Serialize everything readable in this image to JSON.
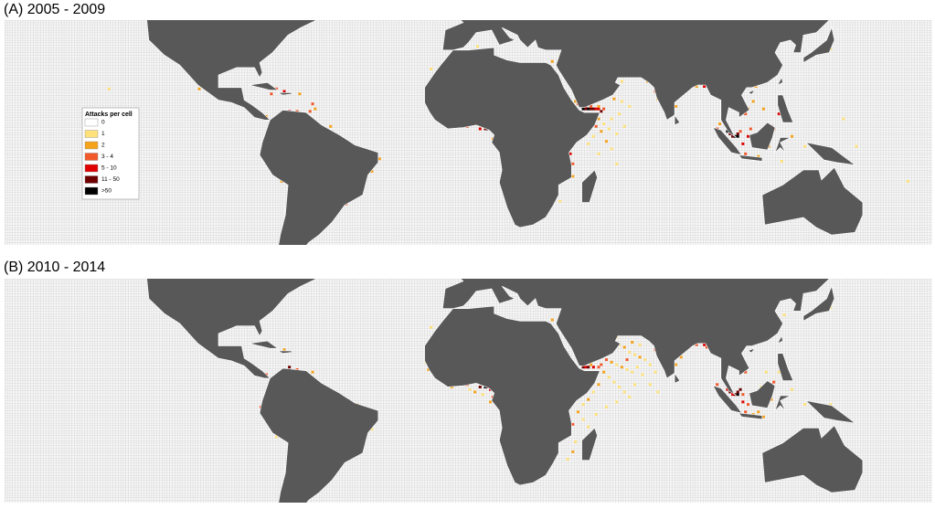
{
  "legend": {
    "title": "Attacks per cell",
    "items": [
      {
        "label": "0",
        "color": "#ffffff"
      },
      {
        "label": "1",
        "color": "#ffe27a"
      },
      {
        "label": "2",
        "color": "#f6a31c"
      },
      {
        "label": "3 - 4",
        "color": "#f2592b"
      },
      {
        "label": "5 - 10",
        "color": "#e00000"
      },
      {
        "label": "11 - 50",
        "color": "#6e0000"
      },
      {
        "label": ">50",
        "color": "#000000"
      }
    ]
  },
  "panels": [
    {
      "title": "(A) 2005 - 2009",
      "cells": [
        [
          44,
          12,
          6
        ],
        [
          45,
          12,
          5
        ],
        [
          46,
          12,
          6
        ],
        [
          47,
          12,
          5
        ],
        [
          48,
          12,
          5
        ],
        [
          49,
          12,
          4
        ],
        [
          50,
          12,
          4
        ],
        [
          51,
          11,
          5
        ],
        [
          45,
          13,
          4
        ],
        [
          43,
          13,
          5
        ],
        [
          42,
          14,
          3
        ],
        [
          41,
          15,
          2
        ],
        [
          47,
          13,
          3
        ],
        [
          50,
          13,
          2
        ],
        [
          52,
          12,
          3
        ],
        [
          50,
          8,
          2
        ],
        [
          52,
          6,
          1
        ],
        [
          54,
          4,
          1
        ],
        [
          49,
          5,
          3
        ],
        [
          51,
          3,
          2
        ],
        [
          48,
          1,
          1
        ],
        [
          55,
          8,
          1
        ],
        [
          57,
          2,
          1
        ],
        [
          53,
          -1,
          2
        ],
        [
          46,
          -2,
          1
        ],
        [
          60,
          5,
          1
        ],
        [
          58,
          10,
          1
        ],
        [
          62,
          13,
          1
        ],
        [
          59,
          15,
          1
        ],
        [
          56,
          16,
          2
        ],
        [
          55,
          -4,
          1
        ],
        [
          50,
          -6,
          1
        ],
        [
          57,
          -10,
          1
        ],
        [
          3,
          6,
          5
        ],
        [
          4,
          4,
          4
        ],
        [
          6,
          4,
          5
        ],
        [
          7,
          4,
          6
        ],
        [
          8,
          4,
          3
        ],
        [
          -4,
          5,
          2
        ],
        [
          -1,
          5,
          3
        ],
        [
          -13,
          9,
          2
        ],
        [
          9,
          3,
          3
        ],
        [
          9,
          0,
          2
        ],
        [
          39,
          -6,
          4
        ],
        [
          40,
          -10,
          3
        ],
        [
          40,
          -15,
          2
        ],
        [
          35,
          -25,
          1
        ],
        [
          12,
          -6,
          3
        ],
        [
          13,
          -9,
          2
        ],
        [
          72,
          19,
          3
        ],
        [
          80,
          13,
          2
        ],
        [
          73,
          16,
          2
        ],
        [
          88,
          21,
          2
        ],
        [
          90,
          22,
          5
        ],
        [
          91,
          21,
          4
        ],
        [
          69,
          23,
          2
        ],
        [
          100,
          3,
          6
        ],
        [
          101,
          2,
          5
        ],
        [
          102,
          1,
          5
        ],
        [
          103,
          1,
          6
        ],
        [
          104,
          1,
          6
        ],
        [
          104,
          2,
          5
        ],
        [
          105,
          3,
          3
        ],
        [
          106,
          -2,
          4
        ],
        [
          107,
          -6,
          3
        ],
        [
          108,
          1,
          4
        ],
        [
          109,
          4,
          3
        ],
        [
          112,
          -7,
          2
        ],
        [
          116,
          -3,
          2
        ],
        [
          117,
          5,
          4
        ],
        [
          118,
          4,
          3
        ],
        [
          120,
          10,
          4
        ],
        [
          121,
          13,
          2
        ],
        [
          114,
          12,
          2
        ],
        [
          110,
          15,
          2
        ],
        [
          107,
          10,
          3
        ],
        [
          108,
          12,
          2
        ],
        [
          111,
          21,
          2
        ],
        [
          121,
          -9,
          1
        ],
        [
          130,
          -3,
          1
        ],
        [
          125,
          1,
          2
        ],
        [
          96,
          4,
          3
        ],
        [
          97,
          6,
          2
        ],
        [
          -70,
          11,
          4
        ],
        [
          -67,
          11,
          3
        ],
        [
          -64,
          10,
          5
        ],
        [
          -62,
          11,
          3
        ],
        [
          -60,
          12,
          2
        ],
        [
          -61,
          14,
          3
        ],
        [
          -66,
          18,
          2
        ],
        [
          -72,
          19,
          4
        ],
        [
          -75,
          20,
          3
        ],
        [
          -77,
          18,
          3
        ],
        [
          -79,
          9,
          2
        ],
        [
          -80,
          -2,
          3
        ],
        [
          -79,
          -8,
          2
        ],
        [
          -77,
          -12,
          3
        ],
        [
          -73,
          -17,
          2
        ],
        [
          -38,
          -13,
          2
        ],
        [
          -44,
          -23,
          4
        ],
        [
          -48,
          -26,
          3
        ],
        [
          -50,
          0,
          2
        ],
        [
          -54,
          5,
          2
        ],
        [
          -35,
          -8,
          2
        ],
        [
          -88,
          14,
          3
        ],
        [
          -90,
          15,
          2
        ],
        [
          -105,
          20,
          2
        ],
        [
          32,
          31,
          2
        ],
        [
          35,
          33,
          1
        ],
        [
          57,
          25,
          2
        ],
        [
          59,
          23,
          1
        ],
        [
          140,
          36,
          1
        ],
        [
          125,
          40,
          1
        ],
        [
          150,
          -3,
          1
        ],
        [
          170,
          -17,
          1
        ],
        [
          145,
          8,
          1
        ],
        [
          -15,
          28,
          1
        ],
        [
          -9,
          43,
          1
        ],
        [
          3,
          37,
          1
        ],
        [
          -140,
          20,
          1
        ]
      ]
    },
    {
      "title": "(B) 2010 - 2014",
      "cells": [
        [
          52,
          18,
          2
        ],
        [
          54,
          19,
          1
        ],
        [
          56,
          20,
          1
        ],
        [
          58,
          21,
          1
        ],
        [
          60,
          20,
          2
        ],
        [
          62,
          18,
          1
        ],
        [
          64,
          17,
          1
        ],
        [
          66,
          16,
          2
        ],
        [
          68,
          15,
          1
        ],
        [
          70,
          13,
          1
        ],
        [
          72,
          10,
          1
        ],
        [
          53,
          15,
          3
        ],
        [
          55,
          14,
          2
        ],
        [
          57,
          13,
          1
        ],
        [
          59,
          12,
          2
        ],
        [
          61,
          11,
          1
        ],
        [
          63,
          10,
          1
        ],
        [
          65,
          12,
          1
        ],
        [
          67,
          9,
          1
        ],
        [
          52,
          10,
          2
        ],
        [
          54,
          8,
          1
        ],
        [
          56,
          6,
          1
        ],
        [
          58,
          4,
          1
        ],
        [
          60,
          2,
          1
        ],
        [
          62,
          0,
          1
        ],
        [
          50,
          5,
          2
        ],
        [
          48,
          2,
          1
        ],
        [
          46,
          -1,
          2
        ],
        [
          44,
          -3,
          1
        ],
        [
          42,
          -6,
          2
        ],
        [
          44,
          -9,
          1
        ],
        [
          46,
          -12,
          1
        ],
        [
          41,
          -18,
          1
        ],
        [
          40,
          -22,
          2
        ],
        [
          38,
          -25,
          1
        ],
        [
          49,
          -7,
          1
        ],
        [
          53,
          -4,
          1
        ],
        [
          57,
          -2,
          1
        ],
        [
          64,
          5,
          1
        ],
        [
          70,
          5,
          1
        ],
        [
          73,
          2,
          1
        ],
        [
          61,
          15,
          3
        ],
        [
          63,
          22,
          2
        ],
        [
          66,
          21,
          1
        ],
        [
          57,
          24,
          1
        ],
        [
          44,
          12,
          5
        ],
        [
          45,
          12,
          4
        ],
        [
          46,
          12,
          5
        ],
        [
          48,
          12,
          4
        ],
        [
          50,
          12,
          3
        ],
        [
          43,
          13,
          4
        ],
        [
          42,
          15,
          3
        ],
        [
          47,
          13,
          2
        ],
        [
          51,
          13,
          3
        ],
        [
          -16,
          11,
          2
        ],
        [
          -13,
          9,
          2
        ],
        [
          -10,
          6,
          1
        ],
        [
          -7,
          4,
          2
        ],
        [
          -4,
          5,
          3
        ],
        [
          -1,
          5,
          3
        ],
        [
          1,
          6,
          4
        ],
        [
          3,
          6,
          5
        ],
        [
          4,
          4,
          5
        ],
        [
          6,
          4,
          6
        ],
        [
          7,
          4,
          5
        ],
        [
          8,
          3,
          4
        ],
        [
          9,
          3,
          3
        ],
        [
          9,
          0,
          3
        ],
        [
          8,
          -2,
          2
        ],
        [
          5,
          1,
          1
        ],
        [
          2,
          2,
          2
        ],
        [
          0,
          3,
          1
        ],
        [
          12,
          -6,
          2
        ],
        [
          -17,
          14,
          1
        ],
        [
          72,
          19,
          3
        ],
        [
          74,
          15,
          2
        ],
        [
          80,
          13,
          2
        ],
        [
          82,
          16,
          2
        ],
        [
          88,
          21,
          3
        ],
        [
          91,
          21,
          4
        ],
        [
          92,
          20,
          3
        ],
        [
          100,
          3,
          4
        ],
        [
          101,
          2,
          5
        ],
        [
          102,
          1,
          4
        ],
        [
          103,
          1,
          5
        ],
        [
          104,
          1,
          6
        ],
        [
          104,
          2,
          5
        ],
        [
          105,
          3,
          5
        ],
        [
          106,
          1,
          3
        ],
        [
          106,
          -2,
          4
        ],
        [
          107,
          -6,
          3
        ],
        [
          108,
          -3,
          3
        ],
        [
          109,
          1,
          4
        ],
        [
          110,
          -7,
          2
        ],
        [
          112,
          -6,
          2
        ],
        [
          114,
          -8,
          2
        ],
        [
          117,
          -1,
          2
        ],
        [
          117,
          5,
          4
        ],
        [
          118,
          6,
          3
        ],
        [
          120,
          10,
          1
        ],
        [
          122,
          14,
          2
        ],
        [
          107,
          10,
          3
        ],
        [
          106,
          20,
          4
        ],
        [
          108,
          21,
          2
        ],
        [
          115,
          10,
          1
        ],
        [
          113,
          4,
          1
        ],
        [
          96,
          5,
          3
        ],
        [
          99,
          7,
          2
        ],
        [
          124,
          8,
          2
        ],
        [
          125,
          3,
          1
        ],
        [
          130,
          -3,
          1
        ],
        [
          140,
          -3,
          1
        ],
        [
          -67,
          11,
          3
        ],
        [
          -64,
          10,
          3
        ],
        [
          -72,
          19,
          2
        ],
        [
          -79,
          9,
          3
        ],
        [
          -80,
          -2,
          4
        ],
        [
          -81,
          -4,
          3
        ],
        [
          -77,
          -12,
          3
        ],
        [
          -75,
          -16,
          1
        ],
        [
          -44,
          -3,
          2
        ],
        [
          -38,
          -13,
          1
        ],
        [
          -48,
          -1,
          2
        ],
        [
          -70,
          12,
          5
        ],
        [
          -61,
          10,
          2
        ],
        [
          -89,
          14,
          3
        ],
        [
          32,
          31,
          2
        ],
        [
          40,
          -11,
          3
        ],
        [
          37,
          -3,
          2
        ],
        [
          140,
          36,
          1
        ],
        [
          122,
          33,
          1
        ],
        [
          -15,
          28,
          1
        ],
        [
          -9,
          43,
          1
        ]
      ]
    }
  ]
}
